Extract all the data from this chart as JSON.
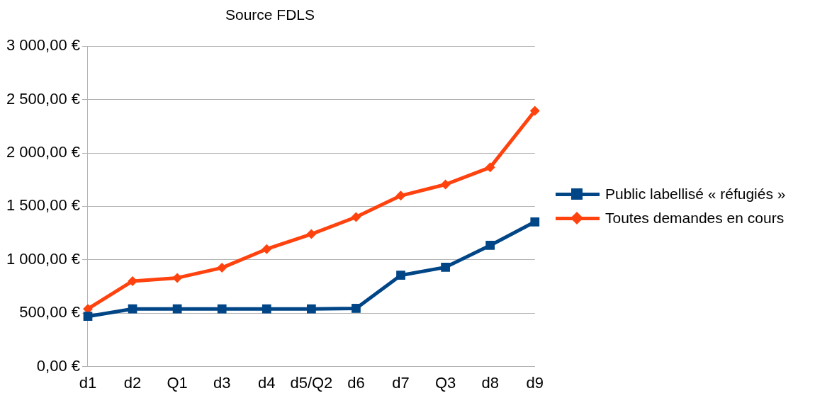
{
  "chart_data": {
    "type": "line",
    "title": "Source FDLS",
    "categories": [
      "d1",
      "d2",
      "Q1",
      "d3",
      "d4",
      "d5/Q2",
      "d6",
      "d7",
      "Q3",
      "d8",
      "d9"
    ],
    "series": [
      {
        "name": "Public labellisé « réfugiés »",
        "color": "#004586",
        "marker": "square",
        "values": [
          470,
          540,
          540,
          540,
          540,
          540,
          545,
          855,
          930,
          1135,
          1355
        ]
      },
      {
        "name": "Toutes demandes en cours",
        "color": "#ff420e",
        "marker": "diamond",
        "values": [
          540,
          800,
          830,
          925,
          1100,
          1240,
          1400,
          1600,
          1705,
          1865,
          2395
        ]
      }
    ],
    "ylim": [
      0,
      3000
    ],
    "yticks": [
      {
        "value": 0,
        "label": "0,00 €"
      },
      {
        "value": 500,
        "label": "500,00 €"
      },
      {
        "value": 1000,
        "label": "1 000,00 €"
      },
      {
        "value": 1500,
        "label": "1 500,00 €"
      },
      {
        "value": 2000,
        "label": "2 000,00 €"
      },
      {
        "value": 2500,
        "label": "2 500,00 €"
      },
      {
        "value": 3000,
        "label": "3 000,00 €"
      }
    ],
    "grid": "y",
    "legend": "right",
    "line_style": "solid"
  }
}
